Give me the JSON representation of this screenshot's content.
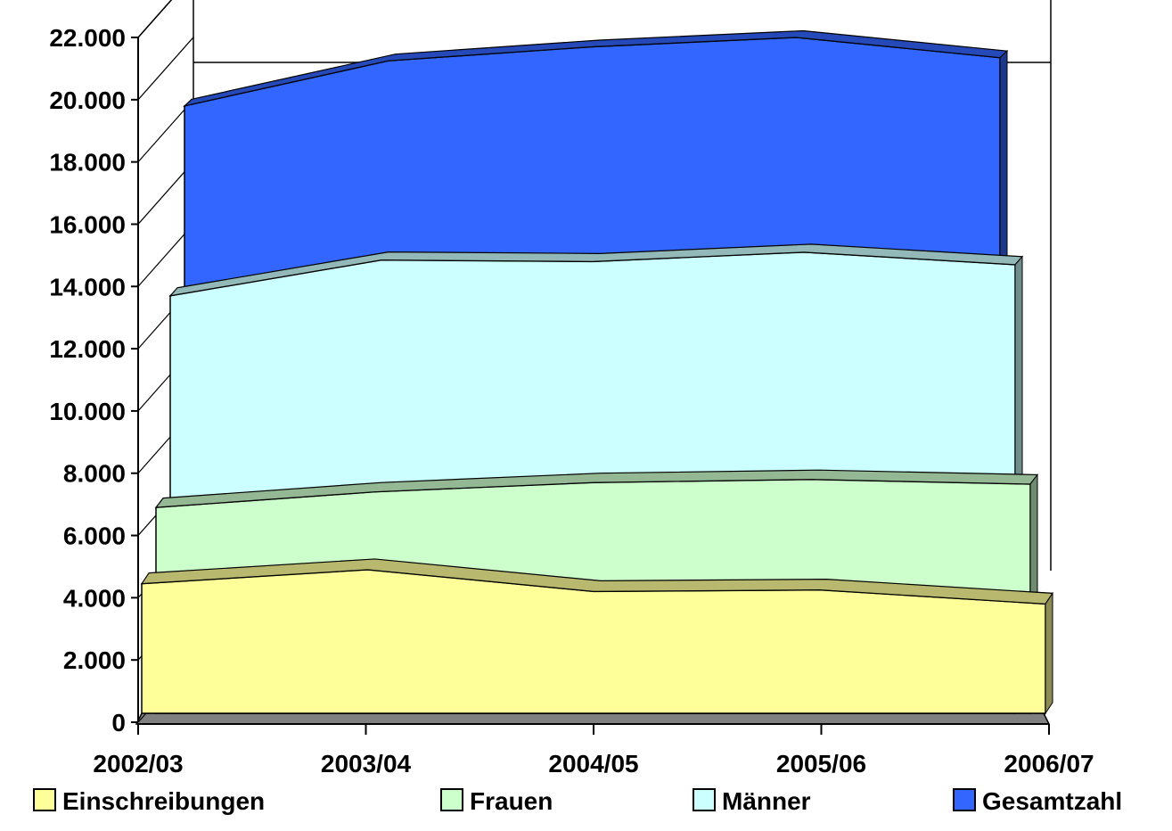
{
  "chart_data": {
    "type": "area",
    "style": "3d-stacked-depth",
    "categories": [
      "2002/03",
      "2003/04",
      "2004/05",
      "2005/06",
      "2006/07"
    ],
    "ylim": [
      0,
      22000
    ],
    "yticks": [
      "0",
      "2.000",
      "4.000",
      "6.000",
      "8.000",
      "10.000",
      "12.000",
      "14.000",
      "16.000",
      "18.000",
      "20.000",
      "22.000"
    ],
    "grid": false,
    "legend_position": "bottom",
    "series": [
      {
        "name": "Einschreibungen",
        "color": "#ffff99",
        "values": [
          4450,
          4900,
          4200,
          4250,
          3800
        ]
      },
      {
        "name": "Frauen",
        "color": "#ccffcc",
        "values": [
          6900,
          7400,
          7700,
          7800,
          7650
        ]
      },
      {
        "name": "Männer",
        "color": "#ccffff",
        "values": [
          13700,
          14850,
          14800,
          15100,
          14700
        ]
      },
      {
        "name": "Gesamtzahl",
        "color": "#3366ff",
        "values": [
          19800,
          21250,
          21700,
          22000,
          21350
        ]
      }
    ]
  }
}
